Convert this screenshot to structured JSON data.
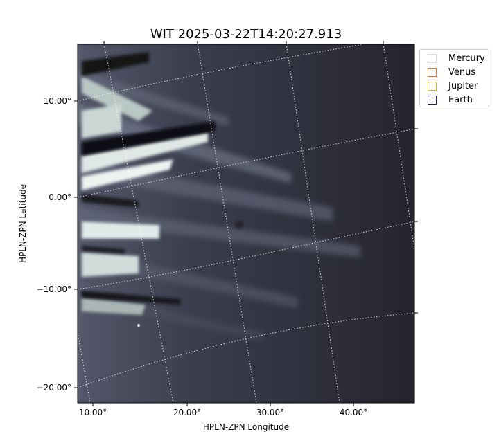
{
  "title": "WIT 2025-03-22T14:20:27.913",
  "axes": {
    "xlabel": "HPLN-ZPN Longitude",
    "ylabel": "HPLN-ZPN Latitude",
    "x_ticks": [
      "10.00°",
      "20.00°",
      "30.00°",
      "40.00°"
    ],
    "y_ticks": [
      "10.00°",
      "0.00°",
      "−10.00°",
      "−20.00°"
    ]
  },
  "legend": {
    "placement": "top-right outside plot",
    "items": [
      {
        "label": "Mercury",
        "color": "#dddddd"
      },
      {
        "label": "Venus",
        "color": "#e07b39"
      },
      {
        "label": "Jupiter",
        "color": "#e8b020"
      },
      {
        "label": "Earth",
        "color": "#1a1a6e"
      }
    ]
  },
  "image": {
    "colormap": "bone",
    "grid": true,
    "grid_style": "dotted white"
  }
}
